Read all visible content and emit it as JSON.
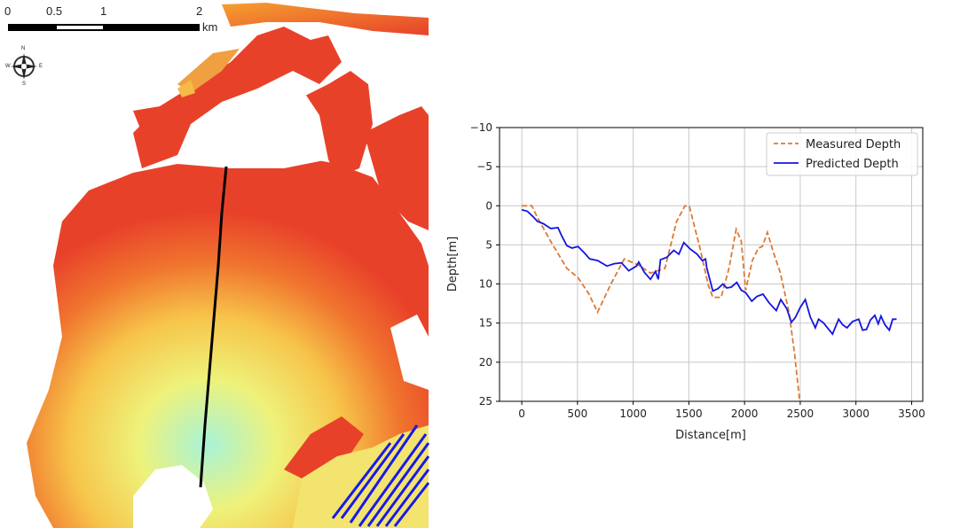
{
  "map": {
    "scalebar": {
      "ticks": [
        "0",
        "0.5",
        "1",
        "2"
      ],
      "unit": "km"
    },
    "compass": {
      "labels": [
        "N",
        "E",
        "S",
        "W"
      ]
    },
    "colors": {
      "shallow": "#e8412a",
      "mid": "#f5a623",
      "deep": "#f2ef6a",
      "deeper": "#9ff0d0",
      "deepest": "#1a1ae6",
      "transect": "#000000"
    }
  },
  "chart_data": {
    "type": "line",
    "title": "",
    "xlabel": "Distance[m]",
    "ylabel": "Depth[m]",
    "xlim": [
      -200,
      3600
    ],
    "ylim": [
      -10,
      25
    ],
    "y_inverted": true,
    "grid": true,
    "legend_position": "top-right",
    "xticks": [
      0,
      500,
      1000,
      1500,
      2000,
      2500,
      3000,
      3500
    ],
    "xtick_labels": [
      "0",
      "500",
      "1000",
      "1500",
      "2000",
      "2500",
      "3000",
      "3500"
    ],
    "yticks": [
      -10,
      -5,
      0,
      5,
      10,
      15,
      20,
      25
    ],
    "ytick_labels": [
      "−10",
      "−5",
      "0",
      "5",
      "10",
      "15",
      "20",
      "25"
    ],
    "series": [
      {
        "name": "Measured Depth",
        "style": "dashed",
        "color": "#dd7a35",
        "x": [
          0,
          90,
          140,
          270,
          405,
          505,
          600,
          680,
          800,
          920,
          1050,
          1155,
          1285,
          1390,
          1465,
          1505,
          1600,
          1675,
          1715,
          1790,
          1860,
          1925,
          1970,
          2010,
          2070,
          2125,
          2160,
          2205,
          2260,
          2320,
          2400,
          2450,
          2495
        ],
        "y": [
          0,
          0,
          1.5,
          4.8,
          8,
          9.2,
          11.2,
          13.6,
          10,
          6.8,
          7.6,
          8.6,
          8,
          2,
          0,
          0.1,
          5.4,
          10.2,
          11.7,
          11.7,
          8,
          3,
          4.5,
          10.8,
          7,
          5.4,
          5.2,
          3.4,
          6,
          8.5,
          13.7,
          19,
          25
        ]
      },
      {
        "name": "Predicted Depth",
        "style": "solid",
        "color": "#1515e0",
        "x": [
          0,
          50,
          95,
          140,
          195,
          260,
          325,
          360,
          405,
          450,
          505,
          560,
          610,
          680,
          765,
          830,
          895,
          960,
          1030,
          1050,
          1100,
          1155,
          1200,
          1225,
          1245,
          1300,
          1365,
          1410,
          1455,
          1510,
          1575,
          1620,
          1650,
          1660,
          1715,
          1760,
          1805,
          1840,
          1880,
          1930,
          1970,
          2010,
          2065,
          2110,
          2165,
          2220,
          2285,
          2325,
          2380,
          2420,
          2455,
          2500,
          2545,
          2590,
          2635,
          2665,
          2710,
          2750,
          2790,
          2845,
          2880,
          2920,
          2970,
          3025,
          3060,
          3095,
          3130,
          3170,
          3200,
          3225,
          3260,
          3300,
          3330,
          3365
        ],
        "y": [
          0.5,
          0.7,
          1.3,
          2.0,
          2.3,
          2.9,
          2.8,
          3.9,
          5.1,
          5.4,
          5.2,
          6.0,
          6.8,
          7.0,
          7.7,
          7.4,
          7.3,
          8.3,
          7.7,
          7.2,
          8.5,
          9.4,
          8.4,
          9.4,
          6.9,
          6.6,
          5.7,
          6.2,
          4.7,
          5.5,
          6.2,
          7.0,
          6.8,
          7.9,
          10.9,
          10.6,
          10.0,
          10.5,
          10.4,
          9.8,
          10.8,
          11.1,
          12.2,
          11.6,
          11.3,
          12.4,
          13.4,
          12.0,
          13.2,
          14.9,
          14.3,
          13.0,
          12.0,
          14.2,
          15.6,
          14.5,
          15.0,
          15.7,
          16.4,
          14.5,
          15.2,
          15.6,
          14.8,
          14.5,
          15.9,
          15.8,
          14.6,
          14.0,
          15.1,
          14.1,
          15.2,
          15.9,
          14.5,
          14.5
        ]
      }
    ]
  }
}
